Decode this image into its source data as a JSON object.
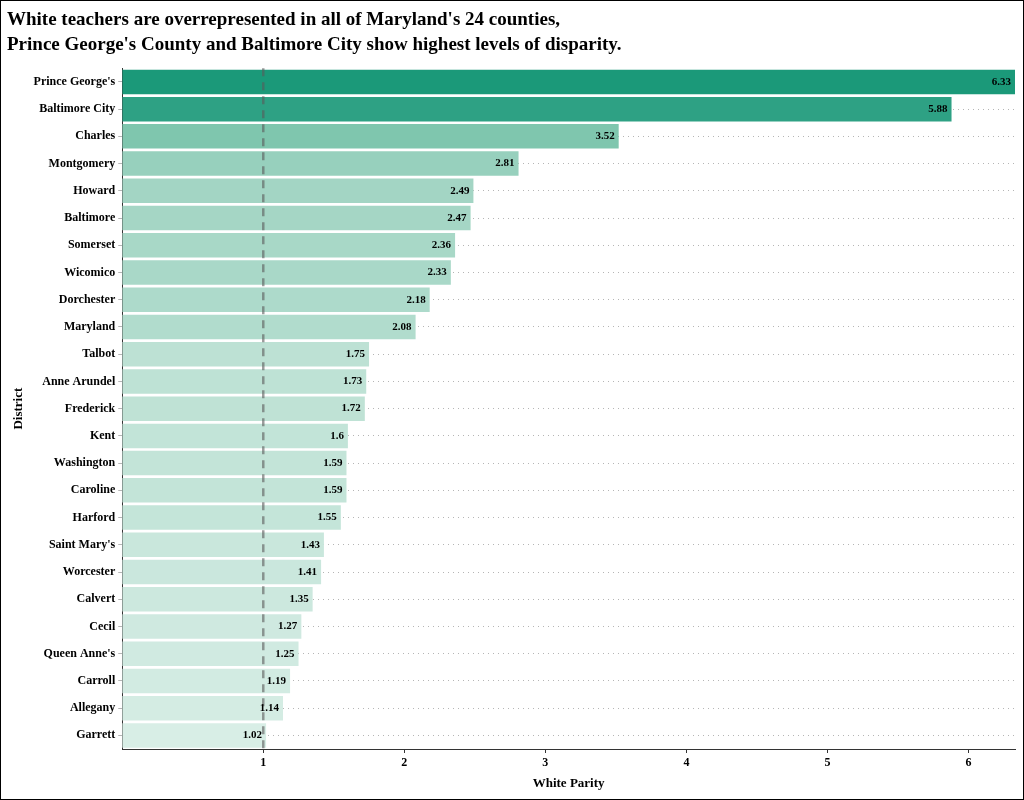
{
  "chart_data": {
    "type": "bar",
    "orientation": "horizontal",
    "title": [
      "White teachers are overrepresented in all of Maryland's 24 counties,",
      "Prince George's County and Baltimore City show highest levels of disparity."
    ],
    "x_label": "White Parity",
    "y_label": "District",
    "categories": [
      "Prince George's",
      "Baltimore City",
      "Charles",
      "Montgomery",
      "Howard",
      "Baltimore",
      "Somerset",
      "Wicomico",
      "Dorchester",
      "Maryland",
      "Talbot",
      "Anne Arundel",
      "Frederick",
      "Kent",
      "Washington",
      "Caroline",
      "Harford",
      "Saint Mary's",
      "Worcester",
      "Calvert",
      "Cecil",
      "Queen Anne's",
      "Carroll",
      "Allegany",
      "Garrett"
    ],
    "values": [
      6.33,
      5.88,
      3.52,
      2.81,
      2.49,
      2.47,
      2.36,
      2.33,
      2.18,
      2.08,
      1.75,
      1.73,
      1.72,
      1.6,
      1.59,
      1.59,
      1.55,
      1.43,
      1.41,
      1.35,
      1.27,
      1.25,
      1.19,
      1.14,
      1.02
    ],
    "colors": [
      "#1b9979",
      "#2ea184",
      "#7fc6ae",
      "#97d0bd",
      "#a3d5c4",
      "#a5d6c5",
      "#a8d8c7",
      "#a9d8c8",
      "#addacb",
      "#b1dccd",
      "#bde1d4",
      "#bee2d5",
      "#bfe2d5",
      "#c2e4d8",
      "#c3e4d8",
      "#c3e4d8",
      "#c4e5d9",
      "#c9e7dc",
      "#cae7dd",
      "#cce8de",
      "#cfe9e0",
      "#d0eae1",
      "#d2ebe2",
      "#d4ece3",
      "#d8eee6"
    ],
    "xlim": [
      0,
      6.33
    ],
    "xticks": [
      1,
      2,
      3,
      4,
      5,
      6
    ],
    "reference_line": 1,
    "grid": true,
    "data_labels": true
  }
}
